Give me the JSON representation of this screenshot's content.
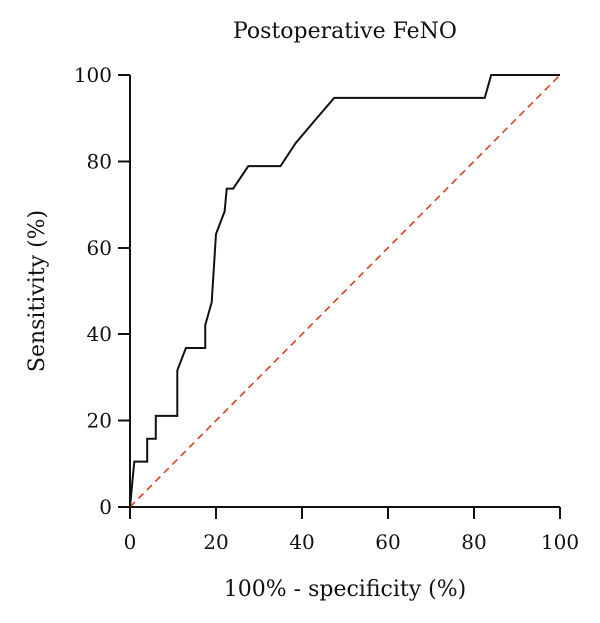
{
  "chart_data": {
    "type": "line",
    "title": "Postoperative FeNO",
    "xlabel": "100% - specificity (%)",
    "ylabel": "Sensitivity (%)",
    "xlim": [
      0,
      100
    ],
    "ylim": [
      0,
      100
    ],
    "x_ticks": [
      0,
      20,
      40,
      60,
      80,
      100
    ],
    "y_ticks": [
      0,
      20,
      40,
      60,
      80,
      100
    ],
    "grid": false,
    "colors": {
      "roc": "#111111",
      "reference": "#d6411e"
    },
    "series": [
      {
        "style": "solid",
        "points": [
          [
            0,
            0
          ],
          [
            0.5,
            5.3
          ],
          [
            1,
            10.5
          ],
          [
            4,
            10.5
          ],
          [
            4,
            15.8
          ],
          [
            6,
            15.8
          ],
          [
            6,
            21.1
          ],
          [
            11,
            21.1
          ],
          [
            11,
            31.6
          ],
          [
            13,
            36.8
          ],
          [
            17.5,
            36.8
          ],
          [
            17.5,
            42.1
          ],
          [
            19,
            47.4
          ],
          [
            20,
            63.2
          ],
          [
            22,
            68.4
          ],
          [
            22.5,
            73.7
          ],
          [
            24,
            73.7
          ],
          [
            27.5,
            78.9
          ],
          [
            35,
            78.9
          ],
          [
            38.5,
            84.2
          ],
          [
            43,
            89.5
          ],
          [
            47.5,
            94.7
          ],
          [
            82.5,
            94.7
          ],
          [
            84,
            100
          ],
          [
            100,
            100
          ]
        ]
      },
      {
        "style": "dashed",
        "points": [
          [
            0,
            0
          ],
          [
            100,
            100
          ]
        ]
      }
    ]
  }
}
